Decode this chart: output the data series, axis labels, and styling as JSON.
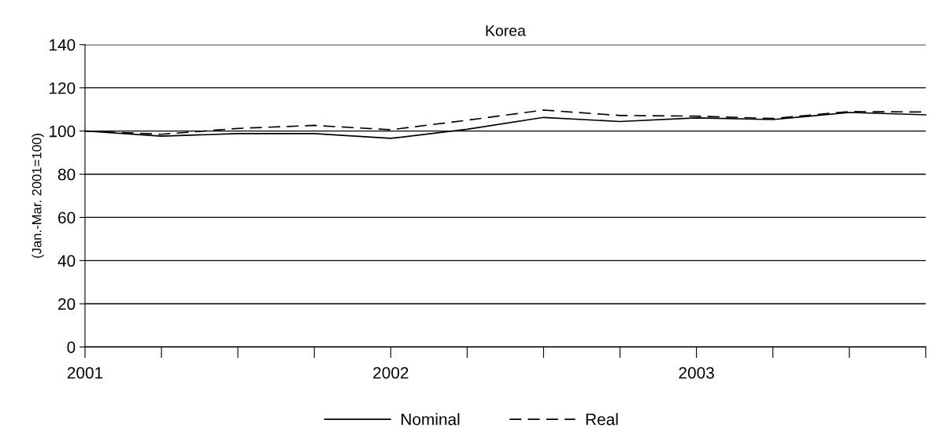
{
  "chart_data": {
    "type": "line",
    "title": "Korea",
    "ylabel": "(Jan.-Mar. 2001=100)",
    "x": [
      2001,
      2001.25,
      2001.5,
      2001.75,
      2002,
      2002.25,
      2002.5,
      2002.75,
      2003,
      2003.25,
      2003.5,
      2003.75
    ],
    "series": [
      {
        "name": "Nominal",
        "color": "#000000",
        "line_style": "solid",
        "values": [
          100,
          97.6,
          98.8,
          98.8,
          96.6,
          100.8,
          106.3,
          104.4,
          106.1,
          105.3,
          108.6,
          107.5
        ]
      },
      {
        "name": "Real",
        "color": "#000000",
        "line_style": "dashed",
        "values": [
          100,
          98.5,
          101.2,
          102.6,
          100.6,
          105,
          109.7,
          107.2,
          106.9,
          105.8,
          109,
          108.8
        ]
      }
    ],
    "xlim": [
      2001,
      2003.75
    ],
    "xticks": [
      2001,
      {
        "value": 2001.25,
        "label": null
      },
      {
        "value": 2001.5,
        "label": null
      },
      {
        "value": 2001.75,
        "label": null
      },
      2002,
      {
        "value": 2002.25,
        "label": null
      },
      {
        "value": 2002.5,
        "label": null
      },
      {
        "value": 2002.75,
        "label": null
      },
      2003,
      {
        "value": 2003.25,
        "label": null
      },
      {
        "value": 2003.5,
        "label": null
      },
      {
        "value": 2003.75,
        "label": null
      }
    ],
    "ylim": [
      0,
      140
    ],
    "yticks": [
      0,
      20,
      40,
      60,
      80,
      100,
      120,
      140
    ],
    "grid": "y",
    "legend": "bottom",
    "marker": "none"
  }
}
